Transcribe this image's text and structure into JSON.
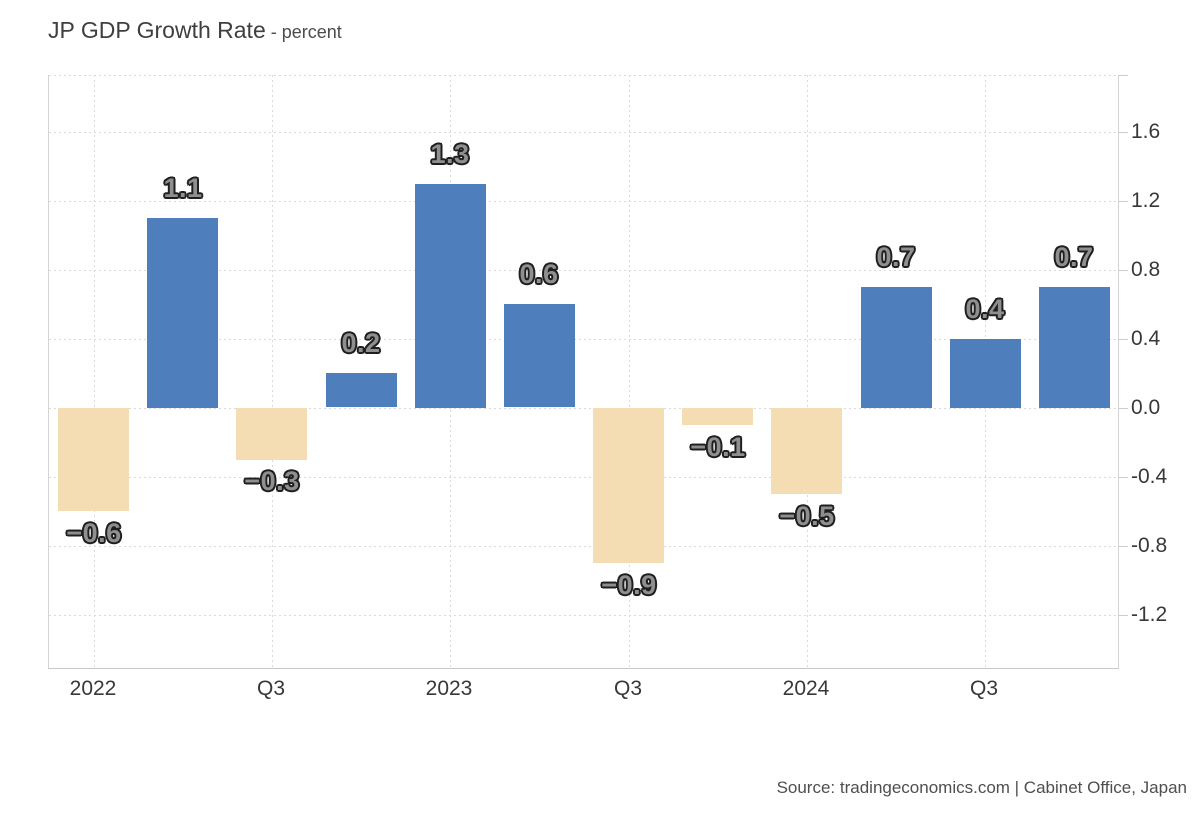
{
  "title": {
    "main": "JP GDP Growth Rate",
    "subtitle": "- percent"
  },
  "source": "Source: tradingeconomics.com | Cabinet Office, Japan",
  "colors": {
    "bar_positive": "#4e7fbc",
    "bar_negative": "#f4ddb2",
    "grid": "#dadada",
    "axis": "#c9c9c9",
    "bar_label_fill": "#8f8f8f",
    "bar_label_outline": "#1f1f1f"
  },
  "chart_data": {
    "type": "bar",
    "title": "JP GDP Growth Rate",
    "ylabel": "percent",
    "values": [
      -0.6,
      1.1,
      -0.3,
      0.2,
      1.3,
      0.6,
      -0.9,
      -0.1,
      -0.5,
      0.7,
      0.4,
      0.7
    ],
    "bar_labels": [
      "−0.6",
      "1.1",
      "−0.3",
      "0.2",
      "1.3",
      "0.6",
      "−0.9",
      "−0.1",
      "−0.5",
      "0.7",
      "0.4",
      "0.7"
    ],
    "x_tick_labels": [
      "2022",
      "Q3",
      "2023",
      "Q3",
      "2024",
      "Q3"
    ],
    "x_tick_positions": [
      0,
      2,
      4,
      6,
      8,
      10
    ],
    "y_ticks": [
      "1.6",
      "1.2",
      "0.8",
      "0.4",
      "0.0",
      "-0.4",
      "-0.8",
      "-1.2"
    ],
    "y_tick_values": [
      1.6,
      1.2,
      0.8,
      0.4,
      0.0,
      -0.4,
      -0.8,
      -1.2
    ],
    "ylim": [
      -1.51,
      1.93
    ],
    "grid": "dotted",
    "legend": "none",
    "y_axis_side": "right"
  }
}
